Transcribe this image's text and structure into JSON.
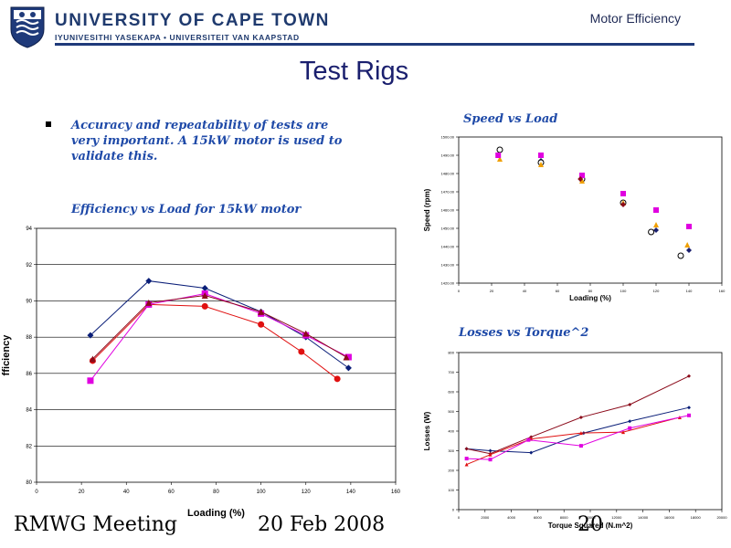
{
  "header": {
    "university_name": "UNIVERSITY OF CAPE TOWN",
    "university_subtitle": "IYUNIVESITHI YASEKAPA • UNIVERSITEIT VAN KAAPSTAD",
    "topic": "Motor Efficiency"
  },
  "slide": {
    "title": "Test Rigs",
    "bullet": "Accuracy and repeatability of tests are very important. A 15kW motor is used to validate this."
  },
  "footer": {
    "meeting": "RMWG Meeting",
    "date": "20 Feb 2008",
    "page": "20"
  },
  "colors": {
    "navy": "#1a1f6e",
    "series_blue": "#0a1e78",
    "series_red": "#e01010",
    "series_magenta": "#e000e0",
    "series_maroon": "#8b0a1a",
    "series_orange": "#f0a000"
  },
  "chart_data": [
    {
      "type": "line",
      "title": "Efficiency vs Load for 15kW motor",
      "xlabel": "Loading (%)",
      "ylabel": "fficiency",
      "xlim": [
        0,
        160
      ],
      "ylim": [
        80,
        94
      ],
      "xticks": [
        "0",
        "20",
        "40",
        "60",
        "80",
        "100",
        "120",
        "140",
        "160"
      ],
      "yticks": [
        "80",
        "82",
        "84",
        "86",
        "88",
        "90",
        "92",
        "94"
      ],
      "grid": true,
      "series": [
        {
          "color": "#0a1e78",
          "marker": "diamond",
          "x": [
            24,
            50,
            75,
            100,
            120,
            139
          ],
          "y": [
            88.1,
            91.1,
            90.7,
            89.4,
            88.0,
            86.3
          ]
        },
        {
          "color": "#e01010",
          "marker": "circle",
          "x": [
            25,
            50,
            75,
            100,
            118,
            134
          ],
          "y": [
            86.7,
            89.8,
            89.7,
            88.7,
            87.2,
            85.7
          ]
        },
        {
          "color": "#e000e0",
          "marker": "square",
          "x": [
            24,
            50,
            75,
            100,
            120,
            139
          ],
          "y": [
            85.6,
            89.8,
            90.4,
            89.3,
            88.1,
            86.9
          ]
        },
        {
          "color": "#8b0a1a",
          "marker": "triangle",
          "x": [
            25,
            50,
            75,
            100,
            120,
            138
          ],
          "y": [
            86.8,
            89.9,
            90.3,
            89.4,
            88.2,
            86.9
          ]
        }
      ]
    },
    {
      "type": "scatter",
      "title": "Speed vs Load",
      "xlabel": "Loading (%)",
      "ylabel": "Speed (rpm)",
      "xlim": [
        0,
        160
      ],
      "ylim": [
        1420,
        1500
      ],
      "xticks": [
        "0",
        "20",
        "40",
        "60",
        "80",
        "100",
        "120",
        "140",
        "160"
      ],
      "yticks": [
        "1420.00",
        "1430.00",
        "1440.00",
        "1450.00",
        "1460.00",
        "1470.00",
        "1480.00",
        "1490.00",
        "1500.00"
      ],
      "grid": false,
      "series": [
        {
          "color": "#1a1f6e",
          "marker": "diamond",
          "x": [
            25,
            50,
            75,
            100,
            120,
            140
          ],
          "y": [
            1493,
            1487,
            1477,
            1464,
            1449,
            1438
          ]
        },
        {
          "color": "#000000",
          "marker": "circle-open",
          "x": [
            25,
            50,
            75,
            100,
            117,
            135
          ],
          "y": [
            1493,
            1486,
            1477,
            1464,
            1448,
            1435
          ]
        },
        {
          "color": "#f0a000",
          "marker": "triangle",
          "x": [
            25,
            50,
            75,
            100,
            120,
            139
          ],
          "y": [
            1488,
            1485,
            1476,
            1464,
            1452,
            1441
          ]
        },
        {
          "color": "#e000e0",
          "marker": "square",
          "x": [
            24,
            50,
            75,
            100,
            120,
            140
          ],
          "y": [
            1490,
            1490,
            1479,
            1469,
            1460,
            1451
          ]
        },
        {
          "color": "#8b0a1a",
          "marker": "diamond",
          "x": [
            74,
            100
          ],
          "y": [
            1477,
            1463
          ]
        }
      ]
    },
    {
      "type": "line",
      "title": "Losses vs Torque^2",
      "xlabel": "Torque Squared (N.m^2)",
      "ylabel": "Losses (W)",
      "xlim": [
        0,
        20000
      ],
      "ylim": [
        0,
        800
      ],
      "xticks": [
        "0",
        "2000",
        "4000",
        "6000",
        "8000",
        "10000",
        "12000",
        "14000",
        "16000",
        "18000",
        "20000"
      ],
      "yticks": [
        "0",
        "100",
        "200",
        "300",
        "400",
        "500",
        "600",
        "700",
        "800"
      ],
      "grid": false,
      "series": [
        {
          "color": "#0a1e78",
          "marker": "diamond",
          "x": [
            600,
            2400,
            5500,
            9500,
            13000,
            17500
          ],
          "y": [
            310,
            300,
            290,
            390,
            450,
            520
          ]
        },
        {
          "color": "#8b0a1a",
          "marker": "diamond",
          "x": [
            600,
            2400,
            5500,
            9300,
            13000,
            17500
          ],
          "y": [
            310,
            285,
            370,
            470,
            535,
            680
          ]
        },
        {
          "color": "#e01010",
          "marker": "triangle",
          "x": [
            600,
            2400,
            5500,
            9300,
            12500,
            16800
          ],
          "y": [
            230,
            280,
            360,
            390,
            395,
            470
          ]
        },
        {
          "color": "#e000e0",
          "marker": "square",
          "x": [
            600,
            2400,
            5300,
            9300,
            13000,
            17500
          ],
          "y": [
            260,
            255,
            355,
            325,
            415,
            480
          ]
        }
      ]
    }
  ]
}
